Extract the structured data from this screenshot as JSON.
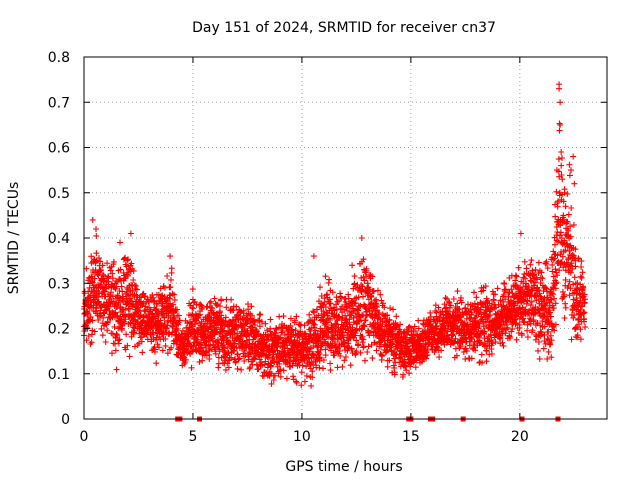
{
  "chart_data": {
    "type": "scatter",
    "title": "Day 151 of 2024, SRMTID for receiver cn37",
    "xlabel": "GPS time / hours",
    "ylabel": "SRMTID / TECUs",
    "xlim": [
      0,
      24
    ],
    "ylim": [
      0,
      0.8
    ],
    "x_ticks": [
      0,
      5,
      10,
      15,
      20
    ],
    "x_tick_labels": [
      "0",
      "5",
      "10",
      "15",
      "20"
    ],
    "y_ticks": [
      0,
      0.1,
      0.2,
      0.3,
      0.4,
      0.5,
      0.6,
      0.7,
      0.8
    ],
    "y_tick_labels": [
      "0",
      "0.1",
      "0.2",
      "0.3",
      "0.4",
      "0.5",
      "0.6",
      "0.7",
      "0.8"
    ],
    "grid": true,
    "marker": "plus",
    "series_color": "#ff0000",
    "series": [
      {
        "name": "SRMTID",
        "envelope_x": [
          0.0,
          0.5,
          1.0,
          1.5,
          2.0,
          2.5,
          3.0,
          3.5,
          4.0,
          4.5,
          5.0,
          5.5,
          6.0,
          6.5,
          7.0,
          7.5,
          8.0,
          8.5,
          9.0,
          9.5,
          10.0,
          10.5,
          11.0,
          11.5,
          12.0,
          12.5,
          13.0,
          13.5,
          14.0,
          14.5,
          15.0,
          15.5,
          16.0,
          16.5,
          17.0,
          17.5,
          18.0,
          18.5,
          19.0,
          19.5,
          20.0,
          20.5,
          21.0,
          21.5,
          21.8,
          22.0,
          22.3,
          22.6,
          23.0
        ],
        "envelope_low": [
          0.15,
          0.16,
          0.14,
          0.08,
          0.12,
          0.13,
          0.12,
          0.1,
          0.11,
          0.09,
          0.1,
          0.09,
          0.1,
          0.08,
          0.09,
          0.08,
          0.07,
          0.06,
          0.06,
          0.06,
          0.07,
          0.05,
          0.08,
          0.09,
          0.08,
          0.09,
          0.1,
          0.1,
          0.08,
          0.08,
          0.08,
          0.1,
          0.12,
          0.12,
          0.12,
          0.11,
          0.1,
          0.1,
          0.13,
          0.14,
          0.14,
          0.14,
          0.1,
          0.09,
          0.18,
          0.17,
          0.16,
          0.13,
          0.18
        ],
        "envelope_high": [
          0.32,
          0.43,
          0.4,
          0.38,
          0.41,
          0.33,
          0.3,
          0.34,
          0.36,
          0.22,
          0.3,
          0.28,
          0.3,
          0.29,
          0.28,
          0.27,
          0.27,
          0.24,
          0.25,
          0.25,
          0.25,
          0.26,
          0.36,
          0.3,
          0.33,
          0.38,
          0.4,
          0.31,
          0.28,
          0.23,
          0.23,
          0.24,
          0.26,
          0.28,
          0.31,
          0.3,
          0.31,
          0.33,
          0.3,
          0.34,
          0.4,
          0.41,
          0.38,
          0.4,
          0.74,
          0.56,
          0.58,
          0.4,
          0.34
        ],
        "spikes": [
          [
            21.8,
            0.74
          ],
          [
            21.8,
            0.73
          ],
          [
            21.85,
            0.7
          ],
          [
            21.85,
            0.65
          ],
          [
            21.9,
            0.59
          ],
          [
            21.9,
            0.56
          ],
          [
            21.95,
            0.53
          ],
          [
            22.05,
            0.5
          ],
          [
            22.1,
            0.47
          ],
          [
            22.0,
            0.45
          ],
          [
            22.2,
            0.42
          ],
          [
            22.35,
            0.55
          ],
          [
            22.45,
            0.58
          ],
          [
            22.5,
            0.52
          ],
          [
            21.7,
            0.55
          ],
          [
            20.05,
            0.41
          ],
          [
            0.4,
            0.44
          ],
          [
            0.55,
            0.42
          ],
          [
            2.15,
            0.41
          ],
          [
            12.75,
            0.4
          ],
          [
            10.55,
            0.36
          ],
          [
            3.95,
            0.36
          ],
          [
            1.65,
            0.39
          ]
        ]
      }
    ],
    "zero_markers_x": [
      4.3,
      4.4,
      5.3,
      14.9,
      15.0,
      15.9,
      16.0,
      17.4,
      20.1,
      21.75
    ]
  }
}
